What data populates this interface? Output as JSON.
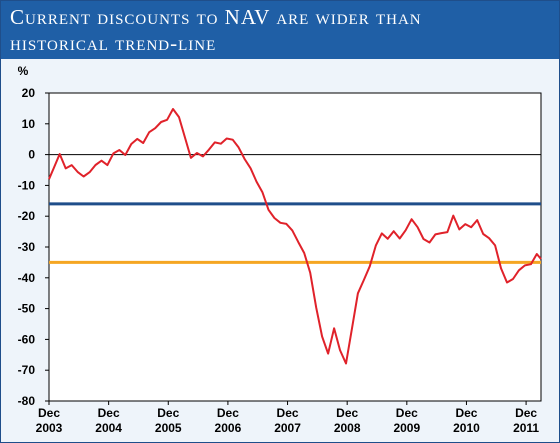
{
  "title_lines": [
    "Current discounts to NAV are wider than",
    "historical trend-line"
  ],
  "chart_data": {
    "type": "line",
    "title": "Current discounts to NAV are wider than historical trend-line",
    "ylabel": "%",
    "ylim": [
      -80,
      20
    ],
    "yticks": [
      20,
      10,
      0,
      -10,
      -20,
      -30,
      -40,
      -50,
      -60,
      -70,
      -80
    ],
    "xlim": [
      2003.92,
      2012.17
    ],
    "xticks": [
      {
        "x": 2003.92,
        "line1": "Dec",
        "line2": "2003"
      },
      {
        "x": 2004.92,
        "line1": "Dec",
        "line2": "2004"
      },
      {
        "x": 2005.92,
        "line1": "Dec",
        "line2": "2005"
      },
      {
        "x": 2006.92,
        "line1": "Dec",
        "line2": "2006"
      },
      {
        "x": 2007.92,
        "line1": "Dec",
        "line2": "2007"
      },
      {
        "x": 2008.92,
        "line1": "Dec",
        "line2": "2008"
      },
      {
        "x": 2009.92,
        "line1": "Dec",
        "line2": "2009"
      },
      {
        "x": 2010.92,
        "line1": "Dec",
        "line2": "2010"
      },
      {
        "x": 2011.92,
        "line1": "Dec",
        "line2": "2011"
      }
    ],
    "grid": false,
    "reference_lines": [
      {
        "value": 0,
        "color": "#000000"
      },
      {
        "value": -16,
        "color": "#1f4e8a"
      },
      {
        "value": -35,
        "color": "#f5a623"
      }
    ],
    "series": [
      {
        "color": "#e0222a",
        "x": [
          2003.92,
          2004.0,
          2004.1,
          2004.2,
          2004.3,
          2004.4,
          2004.5,
          2004.6,
          2004.7,
          2004.8,
          2004.9,
          2005.0,
          2005.1,
          2005.2,
          2005.3,
          2005.4,
          2005.5,
          2005.6,
          2005.7,
          2005.8,
          2005.9,
          2006.0,
          2006.1,
          2006.2,
          2006.3,
          2006.4,
          2006.5,
          2006.6,
          2006.7,
          2006.8,
          2006.9,
          2007.0,
          2007.1,
          2007.2,
          2007.3,
          2007.4,
          2007.5,
          2007.6,
          2007.7,
          2007.8,
          2007.9,
          2008.0,
          2008.1,
          2008.2,
          2008.3,
          2008.4,
          2008.5,
          2008.6,
          2008.7,
          2008.8,
          2008.9,
          2009.0,
          2009.1,
          2009.2,
          2009.3,
          2009.4,
          2009.5,
          2009.6,
          2009.7,
          2009.8,
          2009.9,
          2010.0,
          2010.1,
          2010.2,
          2010.3,
          2010.4,
          2010.5,
          2010.6,
          2010.7,
          2010.8,
          2010.9,
          2011.0,
          2011.1,
          2011.2,
          2011.3,
          2011.4,
          2011.5,
          2011.6,
          2011.7,
          2011.8,
          2011.9,
          2012.0,
          2012.1,
          2012.17
        ],
        "y": [
          -8,
          -5,
          -1,
          -6,
          -5,
          -7,
          -8,
          -6,
          -3,
          -1,
          -2,
          2,
          3,
          1,
          4,
          5,
          3,
          6,
          7,
          9,
          10,
          14,
          12,
          6,
          0,
          2,
          1,
          3,
          5,
          4,
          5,
          4,
          1,
          -3,
          -6,
          -10,
          -13,
          -18,
          -20,
          -21,
          -21,
          -23,
          -27,
          -31,
          -38,
          -50,
          -60,
          -66,
          -58,
          -65,
          -69,
          -57,
          -45,
          -40,
          -35,
          -28,
          -24,
          -26,
          -24,
          -27,
          -25,
          -22,
          -25,
          -29,
          -30,
          -27,
          -26,
          -25,
          -19,
          -23,
          -21,
          -22,
          -20,
          -25,
          -27,
          -30,
          -38,
          -43,
          -42,
          -39,
          -37,
          -36,
          -32,
          -33
        ]
      }
    ]
  }
}
